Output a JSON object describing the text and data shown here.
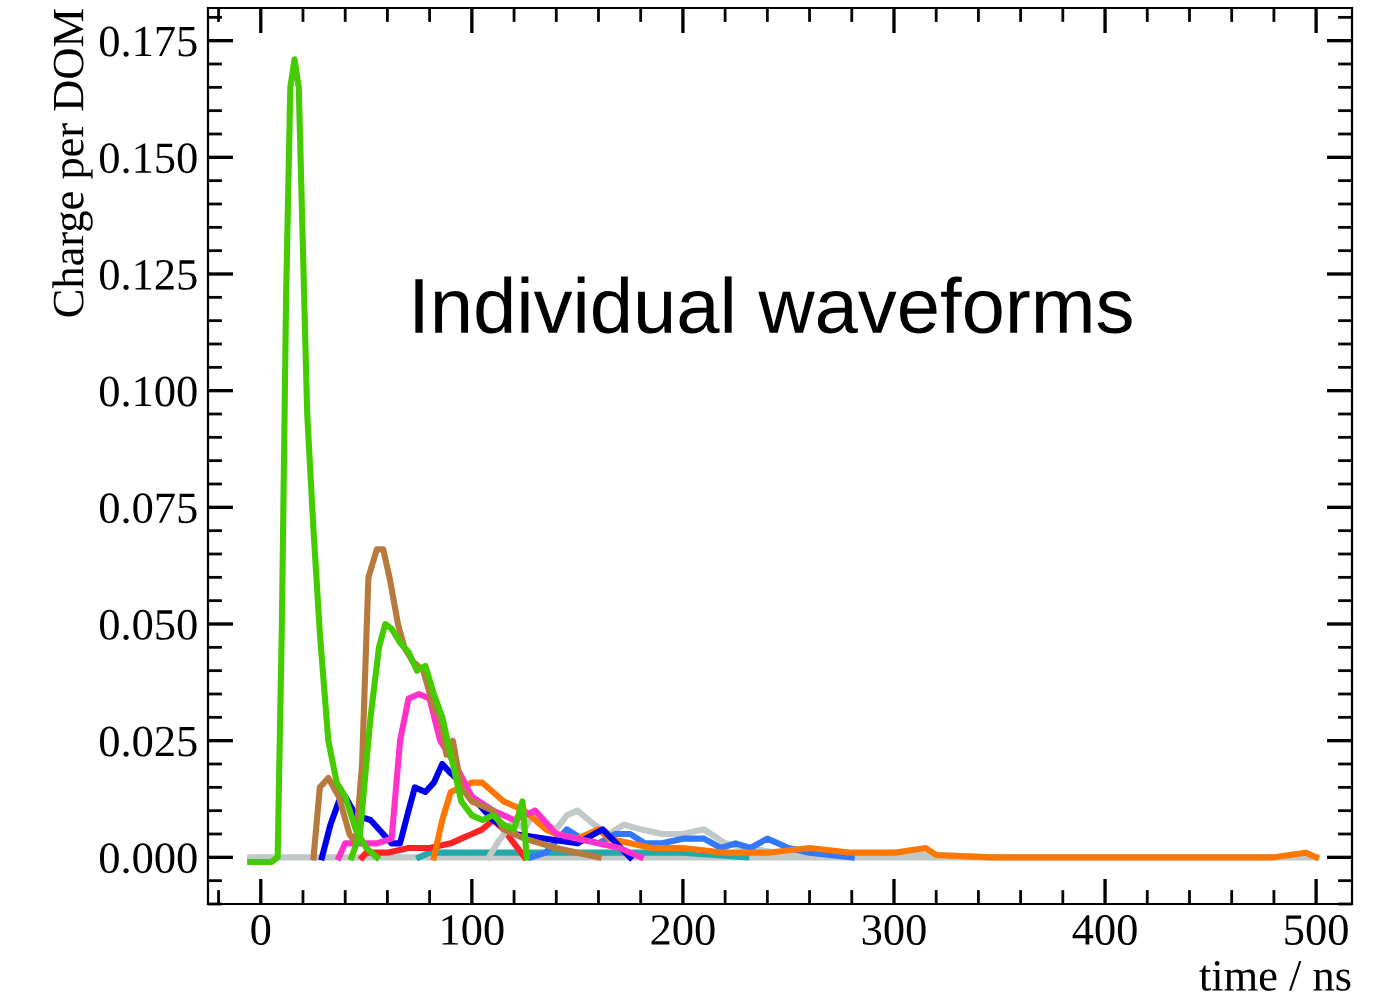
{
  "chart_data": {
    "type": "line",
    "xlabel": "time / ns",
    "ylabel": "Charge per DOM",
    "annotations": [
      "Individual waveforms"
    ],
    "xlim": [
      -25,
      517
    ],
    "ylim": [
      -0.01,
      0.182
    ],
    "xticks": [
      0,
      100,
      200,
      300,
      400,
      500
    ],
    "yticks": [
      {
        "value": 0,
        "label": "0.000"
      },
      0.025,
      {
        "value": 0.05,
        "label": "0.050"
      },
      0.075,
      {
        "value": 0.1,
        "label": "0.100"
      },
      0.125,
      {
        "value": 0.15,
        "label": "0.150"
      },
      0.175
    ],
    "grid": false,
    "legend": false,
    "marker": "none",
    "line_style": "solid",
    "series": [
      {
        "color": "#c0c8c8",
        "x": [
          -5,
          500
        ],
        "values": [
          0,
          0
        ]
      },
      {
        "color": "#22aaaa",
        "x": [
          75,
          80,
          120,
          160,
          200,
          230
        ],
        "values": [
          0,
          0.001,
          0.001,
          0.001,
          0.001,
          0
        ]
      },
      {
        "color": "#ff2222",
        "x": [
          48,
          50,
          60,
          70,
          80,
          90,
          95,
          100,
          105,
          110,
          115,
          120,
          125
        ],
        "values": [
          0,
          0.001,
          0.001,
          0.002,
          0.002,
          0.003,
          0.004,
          0.005,
          0.006,
          0.008,
          0.006,
          0.003,
          0
        ]
      },
      {
        "color": "#c0c8c8",
        "x": [
          108,
          112,
          120,
          125,
          130,
          135,
          140,
          145,
          150,
          158,
          165,
          172,
          180,
          190,
          200,
          210,
          220,
          230,
          245,
          260,
          280,
          300,
          320,
          350
        ],
        "values": [
          0,
          0.003,
          0.008,
          0.006,
          0.01,
          0.007,
          0.006,
          0.009,
          0.01,
          0.007,
          0.005,
          0.007,
          0.006,
          0.005,
          0.005,
          0.006,
          0.003,
          0.002,
          0.001,
          0.001,
          0.0005,
          0.001,
          0.0005,
          0
        ]
      },
      {
        "color": "#3377ff",
        "x": [
          128,
          135,
          145,
          152,
          160,
          168,
          175,
          182,
          190,
          200,
          210,
          218,
          225,
          232,
          240,
          250,
          260,
          280
        ],
        "values": [
          0,
          0.001,
          0.006,
          0.004,
          0.003,
          0.005,
          0.005,
          0.003,
          0.003,
          0.004,
          0.004,
          0.002,
          0.003,
          0.002,
          0.004,
          0.002,
          0.001,
          0
        ]
      },
      {
        "color": "#ff7700",
        "x": [
          82,
          86,
          90,
          95,
          100,
          105,
          110,
          115,
          120,
          125,
          130,
          135,
          140,
          150,
          155,
          160,
          165,
          175,
          185,
          200,
          220,
          240,
          260,
          280,
          300,
          315,
          320,
          345,
          480,
          495,
          500
        ],
        "values": [
          0,
          0.008,
          0.014,
          0.015,
          0.016,
          0.016,
          0.014,
          0.012,
          0.011,
          0.01,
          0.008,
          0.006,
          0.005,
          0.004,
          0.005,
          0.006,
          0.004,
          0.003,
          0.002,
          0.002,
          0.001,
          0.001,
          0.002,
          0.001,
          0.001,
          0.002,
          0.0005,
          0,
          0,
          0.001,
          0
        ]
      },
      {
        "color": "#0000ee",
        "x": [
          29,
          33,
          37,
          40,
          45,
          52,
          58,
          62,
          66,
          70,
          73,
          78,
          82,
          86,
          90,
          95,
          100,
          110,
          120,
          135,
          150,
          162,
          175
        ],
        "values": [
          0,
          0.007,
          0.012,
          0.013,
          0.009,
          0.008,
          0.005,
          0.003,
          0.003,
          0.01,
          0.015,
          0.014,
          0.016,
          0.02,
          0.018,
          0.016,
          0.013,
          0.008,
          0.005,
          0.004,
          0.003,
          0.006,
          0
        ]
      },
      {
        "color": "#ff33cc",
        "x": [
          37,
          40,
          50,
          55,
          62,
          66,
          70,
          75,
          80,
          85,
          92,
          100,
          110,
          120,
          130,
          140,
          150,
          160,
          170,
          180
        ],
        "values": [
          0,
          0.003,
          0.003,
          0.003,
          0.004,
          0.025,
          0.034,
          0.035,
          0.034,
          0.025,
          0.02,
          0.013,
          0.01,
          0.008,
          0.01,
          0.005,
          0.004,
          0.003,
          0.002,
          0
        ]
      },
      {
        "color": "#b87a3c",
        "x": [
          25,
          28,
          32,
          37,
          42,
          45,
          48,
          51,
          55,
          58,
          61,
          65,
          68,
          72,
          77,
          82,
          85,
          88,
          91,
          95,
          100,
          105,
          110,
          115,
          125,
          140,
          160
        ],
        "values": [
          0,
          0.015,
          0.017,
          0.013,
          0.005,
          0.003,
          0.02,
          0.06,
          0.066,
          0.066,
          0.06,
          0.05,
          0.045,
          0.042,
          0.04,
          0.032,
          0.03,
          0.022,
          0.025,
          0.015,
          0.012,
          0.011,
          0.01,
          0.006,
          0.004,
          0.002,
          0
        ]
      },
      {
        "color": "#44cc00",
        "x": [
          43,
          47,
          52,
          56,
          59,
          62,
          66,
          70,
          74,
          78,
          82,
          86,
          90,
          95,
          100,
          105,
          110,
          115,
          120,
          124,
          125,
          126
        ],
        "values": [
          0,
          0.005,
          0.03,
          0.045,
          0.05,
          0.049,
          0.046,
          0.044,
          0.04,
          0.041,
          0.035,
          0.03,
          0.022,
          0.012,
          0.009,
          0.008,
          0.009,
          0.007,
          0.006,
          0.012,
          0.006,
          0
        ]
      },
      {
        "color": "#44cc00",
        "x": [
          -5,
          5,
          8,
          10,
          12,
          14,
          16,
          18,
          20,
          22,
          25,
          28,
          32,
          36,
          40,
          45,
          50,
          55
        ],
        "values": [
          -0.001,
          -0.001,
          0.0,
          0.05,
          0.12,
          0.165,
          0.171,
          0.165,
          0.13,
          0.095,
          0.07,
          0.048,
          0.025,
          0.016,
          0.013,
          0.006,
          0.002,
          0
        ]
      }
    ]
  }
}
